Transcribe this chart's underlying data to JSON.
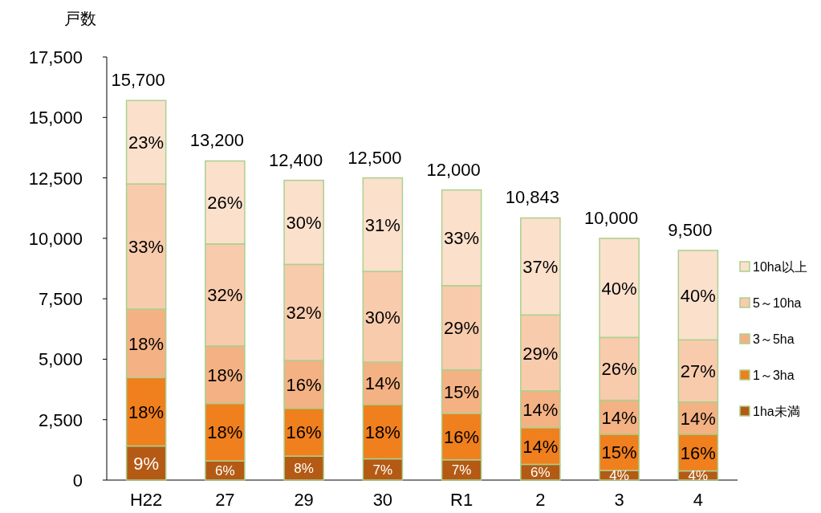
{
  "chart_data": {
    "type": "bar",
    "stacked": true,
    "ylabel": "戸数",
    "legend": "right",
    "grid": false,
    "categories": [
      "H22",
      "27",
      "29",
      "30",
      "R1",
      "2",
      "3",
      "4"
    ],
    "ylim": [
      0,
      17500
    ],
    "yticks": [
      0,
      {
        "value": 2500,
        "label": "2,500"
      },
      {
        "value": 5000,
        "label": "5,000"
      },
      {
        "value": 7500,
        "label": "7,500"
      },
      {
        "value": 10000,
        "label": "10,000"
      },
      {
        "value": 12500,
        "label": "12,500"
      },
      {
        "value": 15000,
        "label": "15,000"
      },
      {
        "value": 17500,
        "label": "17,500"
      }
    ],
    "totals": [
      "15,700",
      "13,200",
      "12,400",
      "12,500",
      "12,000",
      "10,843",
      "10,000",
      "9,500"
    ],
    "series": [
      {
        "name": "1ha未満",
        "color": "#b55a14",
        "values": [
          1410,
          790,
          990,
          880,
          840,
          650,
          400,
          380
        ]
      },
      {
        "name": "1～3ha",
        "color": "#f07f1e",
        "values": [
          2830,
          2380,
          1980,
          2250,
          1920,
          1520,
          1500,
          1520
        ]
      },
      {
        "name": "3～5ha",
        "color": "#f4b183",
        "values": [
          2830,
          2380,
          1980,
          1750,
          1800,
          1520,
          1400,
          1330
        ]
      },
      {
        "name": "5～10ha",
        "color": "#f8cbad",
        "values": [
          5180,
          4220,
          3970,
          3750,
          3480,
          3140,
          2600,
          2570
        ]
      },
      {
        "name": "10ha以上",
        "color": "#fbe0cc",
        "values": [
          3450,
          3430,
          3480,
          3870,
          3960,
          4013,
          4100,
          3700
        ]
      }
    ],
    "annotations": [
      "9%",
      "6%",
      "8%",
      "7%",
      "7%",
      "6%",
      "4%",
      "4%",
      "18%",
      "18%",
      "16%",
      "18%",
      "16%",
      "14%",
      "15%",
      "16%",
      "18%",
      "18%",
      "16%",
      "14%",
      "15%",
      "14%",
      "14%",
      "14%",
      "33%",
      "32%",
      "32%",
      "30%",
      "29%",
      "29%",
      "26%",
      "27%",
      "23%",
      "26%",
      "30%",
      "31%",
      "33%",
      "37%",
      "40%",
      "40%"
    ]
  }
}
